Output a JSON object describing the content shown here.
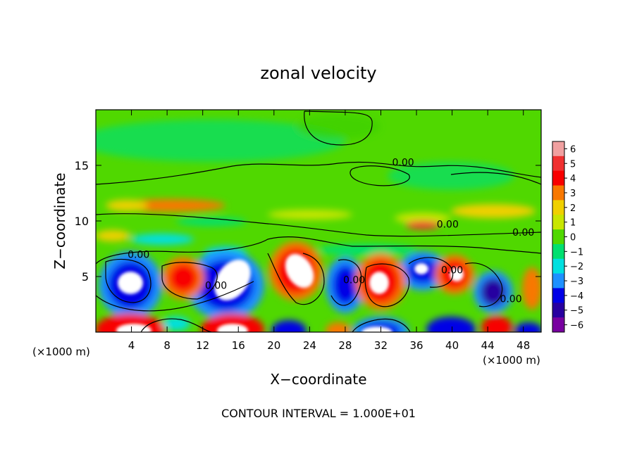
{
  "chart_data": {
    "type": "heatmap",
    "title": "zonal velocity",
    "xlabel": "X−coordinate",
    "ylabel": "Z−coordinate",
    "x_unit_left": "(×1000 m)",
    "x_unit_right": "(×1000 m)",
    "footer": "CONTOUR INTERVAL = 1.000E+01",
    "xlim": [
      0,
      50
    ],
    "ylim": [
      0,
      20
    ],
    "x_ticks": [
      4,
      8,
      12,
      16,
      20,
      24,
      28,
      32,
      36,
      40,
      44,
      48
    ],
    "y_ticks": [
      5,
      10,
      15
    ],
    "colorbar": {
      "levels": [
        6,
        5,
        4,
        3,
        2,
        1,
        0,
        -1,
        -2,
        -3,
        -4,
        -5,
        -6
      ],
      "tick_labels": [
        "6",
        "5",
        "4",
        "3",
        "2",
        "1",
        "0",
        "−1",
        "−2",
        "−3",
        "−4",
        "−5",
        "−6"
      ],
      "colors": [
        "#f0a0a0",
        "#f03030",
        "#f80000",
        "#f87800",
        "#f0d000",
        "#c8e600",
        "#50d800",
        "#00e070",
        "#00e0e0",
        "#1e90ff",
        "#0000e6",
        "#2800a0",
        "#7800a0"
      ]
    },
    "contour_labels": [
      {
        "text": "0.00",
        "x": 34.5,
        "z": 15.3
      },
      {
        "text": "0.00",
        "x": 39.5,
        "z": 9.7
      },
      {
        "text": "0.00",
        "x": 48.0,
        "z": 9.0
      },
      {
        "text": "0.00",
        "x": 4.8,
        "z": 7.0
      },
      {
        "text": "0.00",
        "x": 13.5,
        "z": 4.2
      },
      {
        "text": "0.00",
        "x": 29.0,
        "z": 4.7
      },
      {
        "text": "0.00",
        "x": 40.0,
        "z": 5.6
      },
      {
        "text": "0.00",
        "x": 46.6,
        "z": 3.0
      }
    ]
  }
}
